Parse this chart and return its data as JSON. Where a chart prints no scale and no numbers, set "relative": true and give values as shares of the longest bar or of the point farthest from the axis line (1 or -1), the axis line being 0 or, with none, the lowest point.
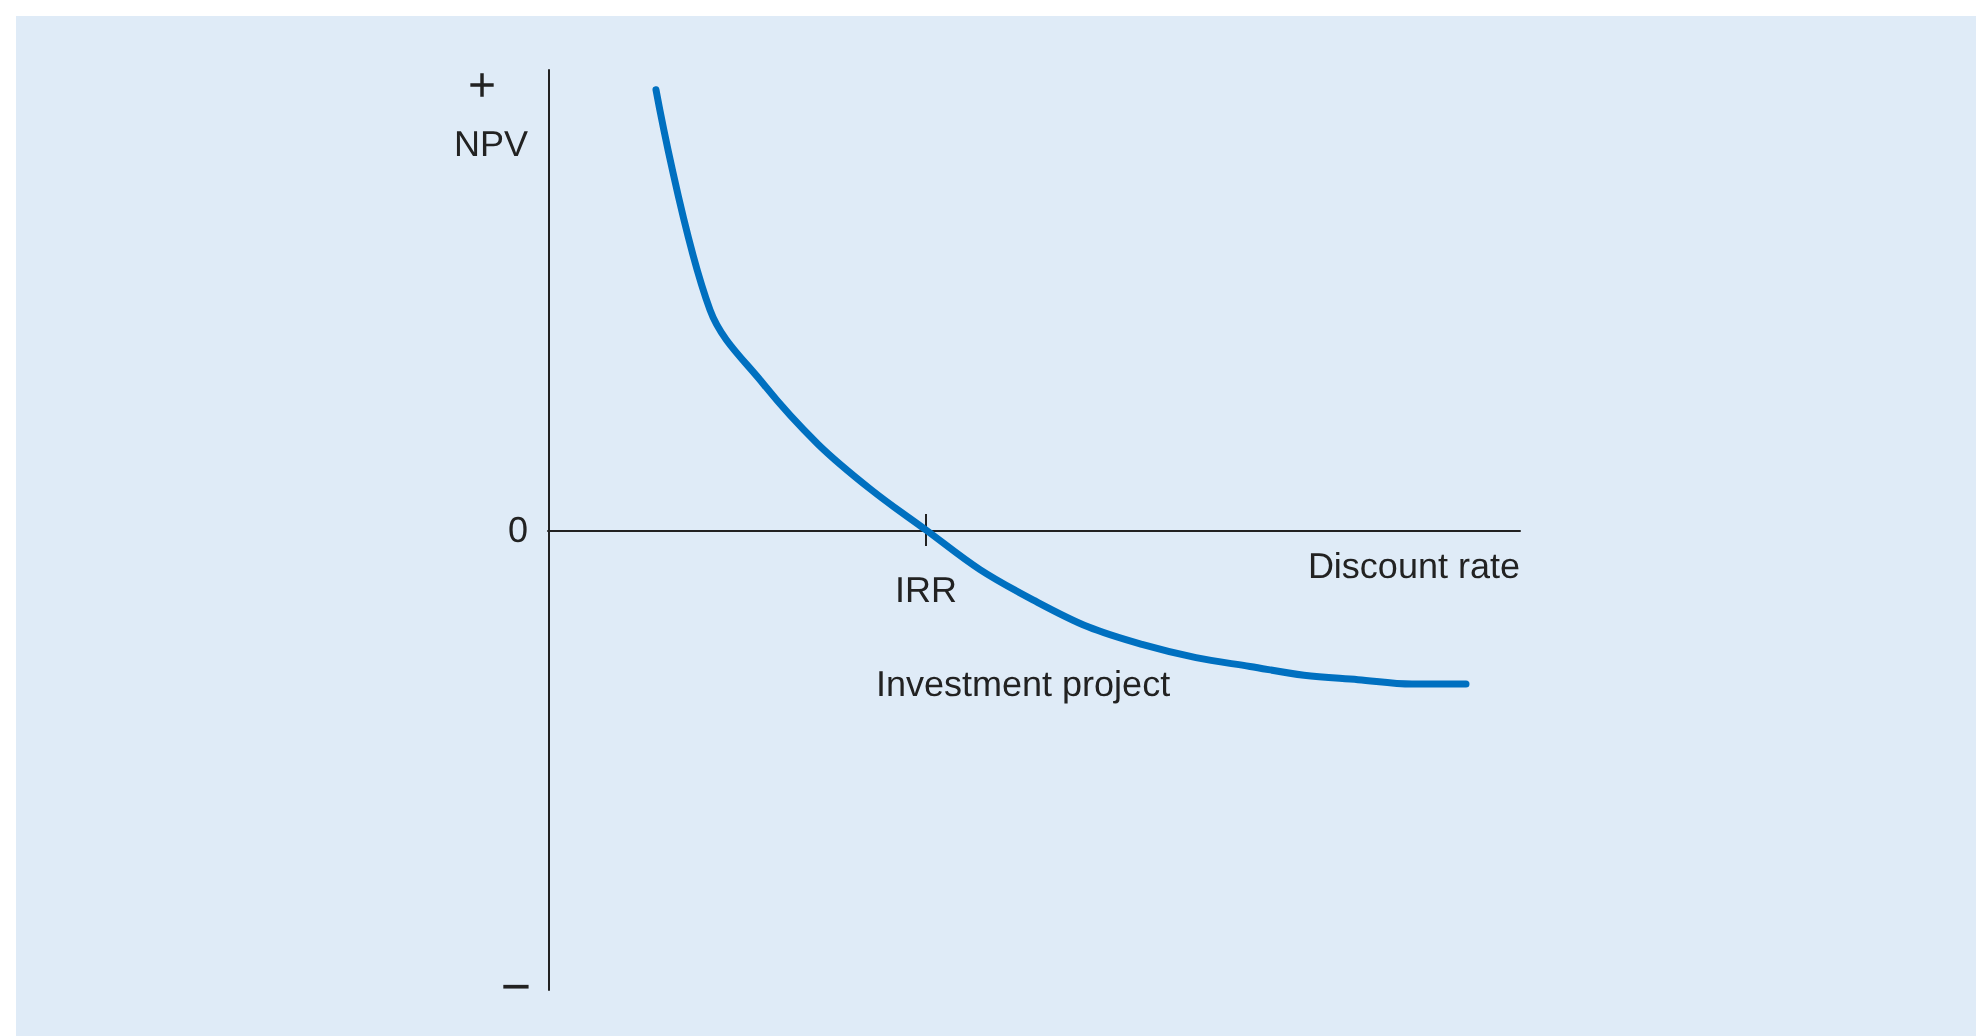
{
  "chart_data": {
    "type": "line",
    "relative": true,
    "xlabel": "Discount rate",
    "ylabel": "NPV",
    "categories": [
      null,
      null,
      null,
      null,
      null,
      null,
      null,
      null,
      null,
      null,
      null,
      null,
      null,
      null,
      null,
      null,
      null,
      null,
      null
    ],
    "series": [
      {
        "name": "Investment project",
        "color": "#0070c0",
        "values": [
          null,
          null,
          1,
          0.5,
          0.33,
          0.195,
          0.09,
          0,
          -0.09,
          -0.16,
          -0.22,
          -0.26,
          -0.29,
          -0.31,
          -0.33,
          -0.34,
          -0.35,
          -0.35,
          null
        ]
      }
    ],
    "annotations": [
      "+",
      "0",
      "−",
      {
        "text": "IRR",
        "y": 0
      }
    ],
    "grid": false,
    "legend": false,
    "marker": "none",
    "line_style": "solid"
  }
}
